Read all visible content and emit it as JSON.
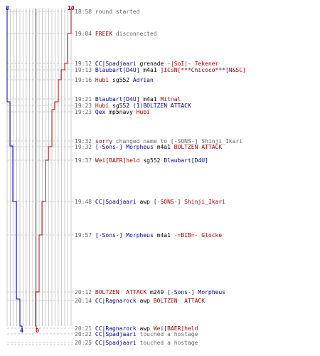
{
  "colors": {
    "blue_team": "#0000c0",
    "red_team": "#c00000",
    "grid": "#c8c8c8",
    "center": "#777777",
    "text_gray": "#666666"
  },
  "scores": {
    "blue_start": "8",
    "red_start": "10",
    "blue_end": "4",
    "red_end": "0"
  },
  "events": [
    {
      "time": "18:58",
      "parts": [
        {
          "t": "round started",
          "c": "gray"
        }
      ]
    },
    {
      "time": "19:04",
      "parts": [
        {
          "t": "FREEK",
          "c": "red"
        },
        {
          "t": " disconnected",
          "c": "gray"
        }
      ]
    },
    {
      "time": "19:12",
      "parts": [
        {
          "t": "CC|Spadjaari",
          "c": "blue"
        },
        {
          "t": " grenade ",
          "c": "black"
        },
        {
          "t": "-|SoI|- Tekener",
          "c": "red"
        }
      ]
    },
    {
      "time": "19:13",
      "parts": [
        {
          "t": "Blaubart[D4U]",
          "c": "blue"
        },
        {
          "t": " m4a1 ",
          "c": "black"
        },
        {
          "t": "]ICsN[***Chicoco***[N&SC]",
          "c": "red"
        }
      ]
    },
    {
      "time": "19:16",
      "parts": [
        {
          "t": "Hubi",
          "c": "red"
        },
        {
          "t": " sg552 ",
          "c": "black"
        },
        {
          "t": "Adrian",
          "c": "blue"
        }
      ]
    },
    {
      "time": "19:21",
      "parts": [
        {
          "t": "Blaubart[D4U]",
          "c": "blue"
        },
        {
          "t": " m4a1 ",
          "c": "black"
        },
        {
          "t": "Mitnal",
          "c": "red"
        }
      ]
    },
    {
      "time": "19:23",
      "parts": [
        {
          "t": "Hubi",
          "c": "red"
        },
        {
          "t": " sg552 ",
          "c": "black"
        },
        {
          "t": "(1)BOLTZEN ATTACK",
          "c": "blue"
        }
      ]
    },
    {
      "time": "19:23",
      "parts": [
        {
          "t": "Qex",
          "c": "blue"
        },
        {
          "t": " mp5navy ",
          "c": "black"
        },
        {
          "t": "Hubi",
          "c": "red"
        }
      ]
    },
    {
      "time": "19:32",
      "parts": [
        {
          "t": "sorry",
          "c": "red"
        },
        {
          "t": " changed name to ",
          "c": "gray"
        },
        {
          "t": "[-SONS-] Shinji_Ikari",
          "c": "gray"
        }
      ]
    },
    {
      "time": "19:32",
      "parts": [
        {
          "t": "[-Sons-] Morpheus",
          "c": "blue"
        },
        {
          "t": " m4a1 ",
          "c": "black"
        },
        {
          "t": "BOLTZEN ATTACK",
          "c": "red"
        }
      ]
    },
    {
      "time": "19:37",
      "parts": [
        {
          "t": "Wei[BAER]held",
          "c": "red"
        },
        {
          "t": " sg552 ",
          "c": "black"
        },
        {
          "t": "Blaubart[D4U]",
          "c": "blue"
        }
      ]
    },
    {
      "time": "19:48",
      "parts": [
        {
          "t": "CC|Spadjaari",
          "c": "blue"
        },
        {
          "t": " awp ",
          "c": "black"
        },
        {
          "t": "[-SONS-] Shinji_Ikari",
          "c": "red"
        }
      ]
    },
    {
      "time": "19:57",
      "parts": [
        {
          "t": "[-Sons-] Morpheus",
          "c": "blue"
        },
        {
          "t": " m4a1 ",
          "c": "black"
        },
        {
          "t": "-=BIB=- Glocke",
          "c": "red"
        }
      ]
    },
    {
      "time": "20:12",
      "parts": [
        {
          "t": "BOLTZEN  ATTACK",
          "c": "red"
        },
        {
          "t": " m249 ",
          "c": "black"
        },
        {
          "t": "[-Sons-] Morpheus",
          "c": "blue"
        }
      ]
    },
    {
      "time": "20:14",
      "parts": [
        {
          "t": "CC|Ragnarock",
          "c": "blue"
        },
        {
          "t": " awp ",
          "c": "black"
        },
        {
          "t": "BOLTZEN  ATTACK",
          "c": "red"
        }
      ]
    },
    {
      "time": "20:21",
      "parts": [
        {
          "t": "CC|Ragnarock",
          "c": "blue"
        },
        {
          "t": " awp ",
          "c": "black"
        },
        {
          "t": "Wei[BAER]held",
          "c": "red"
        }
      ]
    },
    {
      "time": "20:22",
      "parts": [
        {
          "t": "CC|Spadjaari",
          "c": "blue"
        },
        {
          "t": " touched a hostage",
          "c": "gray"
        }
      ]
    },
    {
      "time": "20:25",
      "parts": [
        {
          "t": "CC|Spadjaari",
          "c": "blue"
        },
        {
          "t": " touched a hostage",
          "c": "gray"
        }
      ]
    }
  ]
}
